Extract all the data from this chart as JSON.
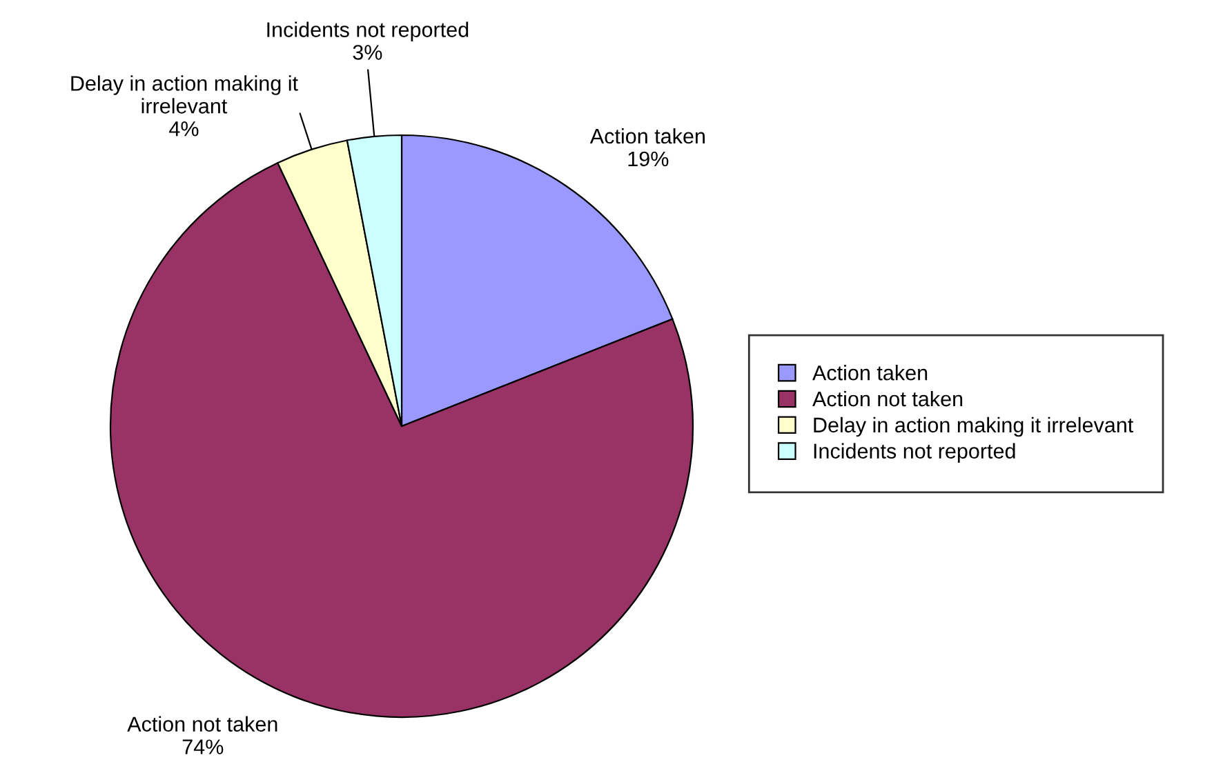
{
  "chart_data": {
    "type": "pie",
    "categories": [
      "Action taken",
      "Action not taken",
      "Delay in action making it irrelevant",
      "Incidents not reported"
    ],
    "values": [
      19,
      74,
      4,
      3
    ],
    "value_labels": [
      "19%",
      "74%",
      "4%",
      "3%"
    ],
    "colors": [
      "#9999ff",
      "#993366",
      "#ffffcc",
      "#ccffff"
    ],
    "legend": "right"
  }
}
